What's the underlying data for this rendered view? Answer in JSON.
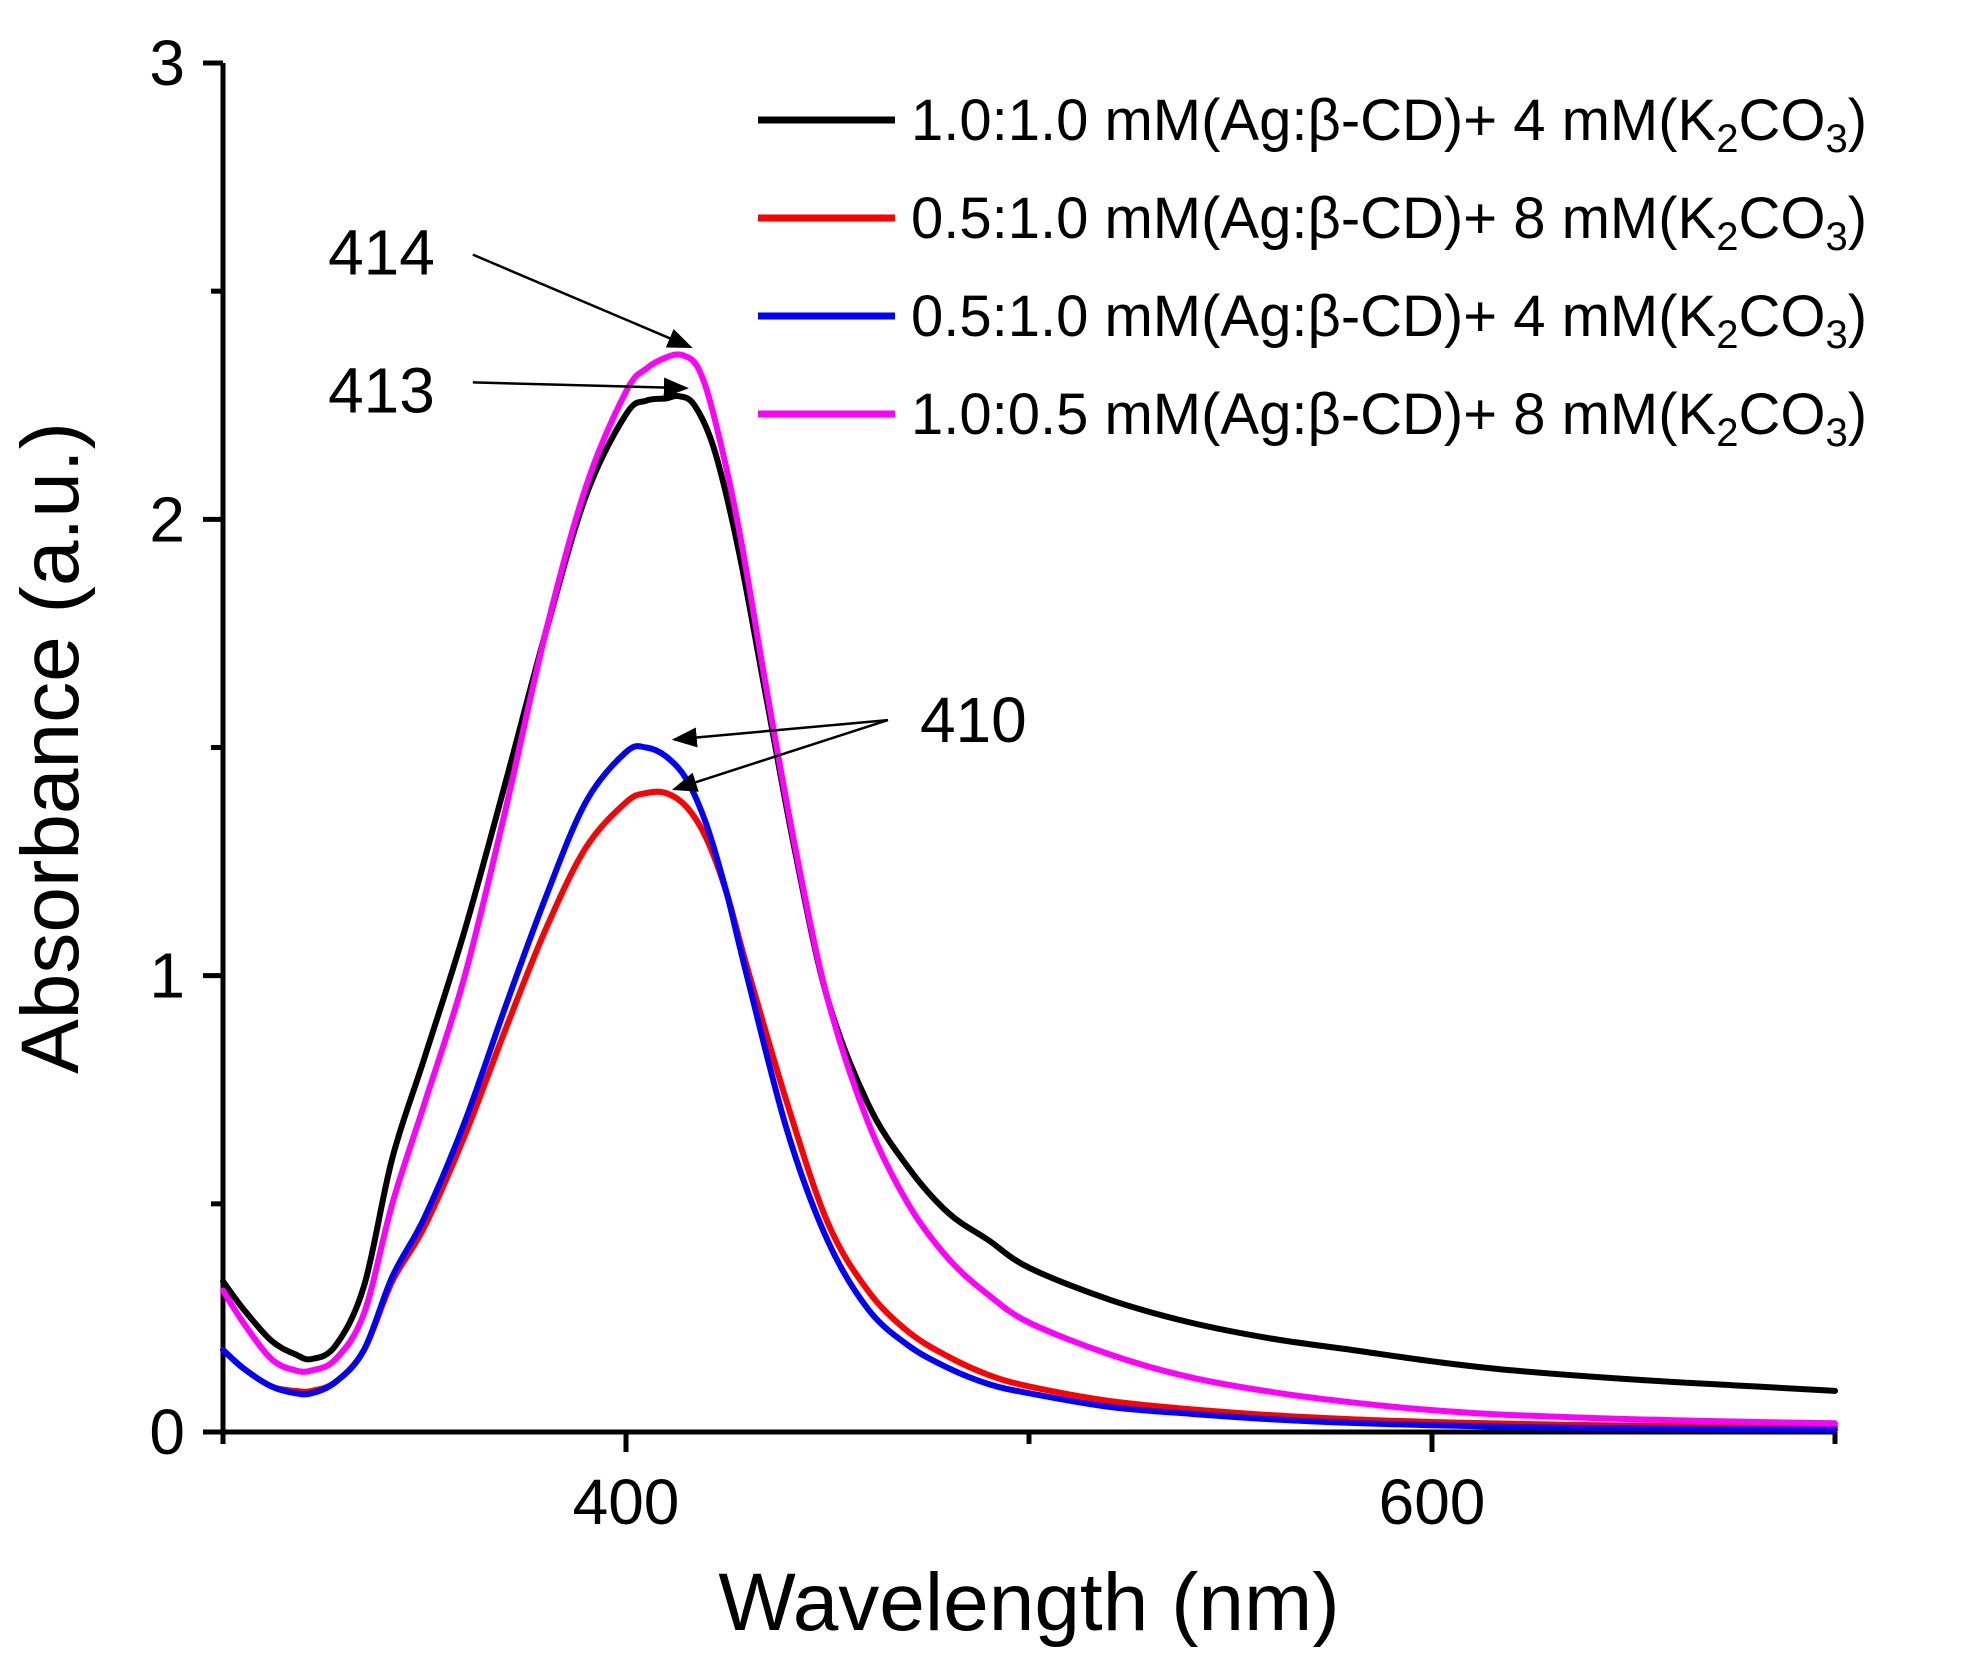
{
  "chart_data": {
    "type": "line",
    "xlabel": "Wavelength (nm)",
    "ylabel": "Absorbance (a.u.)",
    "xlim": [
      300,
      700
    ],
    "ylim": [
      0,
      3
    ],
    "x_major_ticks": [
      400,
      600
    ],
    "x_minor_ticks": [
      300,
      500,
      700
    ],
    "y_major_ticks": [
      0,
      1,
      2,
      3
    ],
    "legend_position": "top-right",
    "series": [
      {
        "name_prefix": "1.0:1.0 mM(Ag:β-CD)+ 4 mM(K",
        "name_sub1": "2",
        "name_mid": "CO",
        "name_sub2": "3",
        "name_suffix": ")",
        "color": "#000000",
        "x": [
          300,
          305,
          312,
          318,
          322,
          328,
          335,
          342,
          350,
          360,
          370,
          380,
          390,
          400,
          405,
          410,
          413,
          417,
          422,
          428,
          435,
          442,
          450,
          460,
          470,
          480,
          490,
          500,
          520,
          540,
          560,
          580,
          600,
          620,
          650,
          680,
          700
        ],
        "y": [
          0.33,
          0.27,
          0.2,
          0.17,
          0.16,
          0.19,
          0.32,
          0.6,
          0.82,
          1.1,
          1.42,
          1.75,
          2.05,
          2.23,
          2.26,
          2.265,
          2.27,
          2.25,
          2.15,
          1.93,
          1.6,
          1.27,
          0.95,
          0.72,
          0.58,
          0.48,
          0.42,
          0.36,
          0.29,
          0.24,
          0.205,
          0.18,
          0.155,
          0.135,
          0.115,
          0.1,
          0.09
        ]
      },
      {
        "name_prefix": "0.5:1.0 mM(Ag:β-CD)+ 8 mM(K",
        "name_sub1": "2",
        "name_mid": "CO",
        "name_sub2": "3",
        "name_suffix": ")",
        "color": "#ff0000",
        "x": [
          300,
          305,
          312,
          318,
          322,
          328,
          335,
          342,
          350,
          360,
          370,
          380,
          390,
          400,
          405,
          410,
          415,
          420,
          425,
          430,
          440,
          450,
          460,
          470,
          480,
          490,
          500,
          520,
          540,
          560,
          580,
          600,
          620,
          650,
          680,
          700
        ],
        "y": [
          0.18,
          0.14,
          0.1,
          0.09,
          0.09,
          0.11,
          0.18,
          0.33,
          0.45,
          0.65,
          0.88,
          1.1,
          1.28,
          1.38,
          1.4,
          1.4,
          1.37,
          1.3,
          1.18,
          1.02,
          0.72,
          0.46,
          0.31,
          0.22,
          0.165,
          0.125,
          0.1,
          0.068,
          0.05,
          0.037,
          0.028,
          0.022,
          0.018,
          0.014,
          0.012,
          0.011
        ]
      },
      {
        "name_prefix": "0.5:1.0 mM(Ag:β-CD)+ 4 mM(K",
        "name_sub1": "2",
        "name_mid": "CO",
        "name_sub2": "3",
        "name_suffix": ")",
        "color": "#0000ff",
        "x": [
          300,
          305,
          312,
          318,
          322,
          328,
          335,
          342,
          350,
          360,
          370,
          380,
          390,
          400,
          405,
          410,
          415,
          420,
          425,
          430,
          440,
          450,
          460,
          470,
          480,
          490,
          500,
          520,
          540,
          560,
          580,
          600,
          620,
          650,
          680,
          700
        ],
        "y": [
          0.18,
          0.14,
          0.1,
          0.085,
          0.085,
          0.11,
          0.18,
          0.34,
          0.47,
          0.68,
          0.93,
          1.17,
          1.38,
          1.49,
          1.5,
          1.48,
          1.43,
          1.33,
          1.18,
          1.0,
          0.66,
          0.42,
          0.27,
          0.19,
          0.14,
          0.105,
          0.085,
          0.055,
          0.04,
          0.028,
          0.02,
          0.015,
          0.011,
          0.008,
          0.006,
          0.005
        ]
      },
      {
        "name_prefix": "1.0:0.5 mM(Ag:β-CD)+ 8 mM(K",
        "name_sub1": "2",
        "name_mid": "CO",
        "name_sub2": "3",
        "name_suffix": ")",
        "color": "#ff00ff",
        "x": [
          300,
          305,
          312,
          318,
          322,
          328,
          335,
          342,
          350,
          360,
          370,
          380,
          390,
          400,
          405,
          410,
          414,
          418,
          422,
          428,
          435,
          442,
          450,
          460,
          470,
          480,
          490,
          500,
          520,
          540,
          560,
          580,
          600,
          620,
          650,
          680,
          700
        ],
        "y": [
          0.31,
          0.24,
          0.16,
          0.135,
          0.135,
          0.16,
          0.26,
          0.5,
          0.72,
          1.0,
          1.36,
          1.75,
          2.07,
          2.28,
          2.33,
          2.355,
          2.36,
          2.33,
          2.22,
          1.98,
          1.62,
          1.28,
          0.95,
          0.68,
          0.5,
          0.38,
          0.3,
          0.24,
          0.17,
          0.12,
          0.088,
          0.065,
          0.048,
          0.037,
          0.028,
          0.022,
          0.019
        ]
      }
    ],
    "annotations": [
      {
        "text": "414",
        "target_x": 414,
        "target_y": 2.36,
        "from_x": 362,
        "from_y": 2.58
      },
      {
        "text": "413",
        "target_x": 413,
        "target_y": 2.27,
        "from_x": 362,
        "from_y": 2.3
      },
      {
        "text": "410",
        "target_x": 410,
        "target_y": 1.5,
        "from_x": 465,
        "from_y": 1.56,
        "target2_x": 410,
        "target2_y": 1.4
      }
    ]
  }
}
